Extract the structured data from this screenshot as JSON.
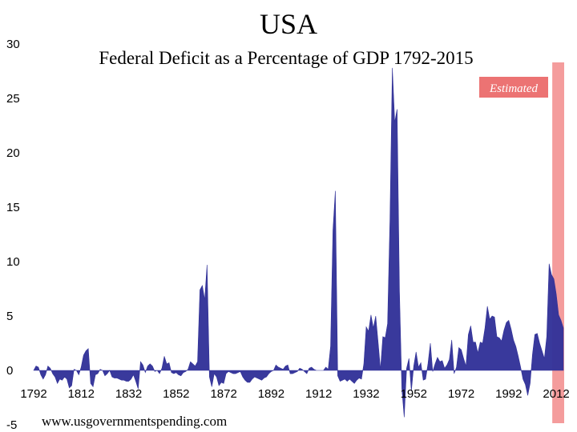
{
  "chart_data": {
    "type": "area",
    "title": "USA",
    "subtitle": "Federal Deficit as a Percentage of GDP 1792-2015",
    "source": "www.usgovernmentspending.com",
    "estimated_label": "Estimated",
    "estimated_range": [
      2011,
      2015
    ],
    "xlim": [
      1792,
      2015
    ],
    "ylim": [
      -5,
      30
    ],
    "yticks": [
      -5,
      0,
      5,
      10,
      15,
      20,
      25,
      30
    ],
    "xticks": [
      1792,
      1812,
      1832,
      1852,
      1872,
      1892,
      1912,
      1932,
      1952,
      1972,
      1992,
      2012
    ],
    "grid": false,
    "colors": {
      "series": "#333399",
      "estimated": "#f28b8b",
      "estimated_label_bg": "#ec7373"
    },
    "series": [
      {
        "points": [
          [
            1792,
            0.0
          ],
          [
            1793,
            0.4
          ],
          [
            1794,
            0.3
          ],
          [
            1795,
            -0.4
          ],
          [
            1796,
            -0.8
          ],
          [
            1797,
            -0.4
          ],
          [
            1798,
            0.4
          ],
          [
            1799,
            0.2
          ],
          [
            1800,
            -0.3
          ],
          [
            1801,
            -0.6
          ],
          [
            1802,
            -1.2
          ],
          [
            1803,
            -0.8
          ],
          [
            1804,
            -0.9
          ],
          [
            1805,
            -0.6
          ],
          [
            1806,
            -0.8
          ],
          [
            1807,
            -1.6
          ],
          [
            1808,
            -1.4
          ],
          [
            1809,
            0.1
          ],
          [
            1810,
            0.0
          ],
          [
            1811,
            -0.4
          ],
          [
            1812,
            0.3
          ],
          [
            1813,
            1.4
          ],
          [
            1814,
            1.8
          ],
          [
            1815,
            2.0
          ],
          [
            1816,
            -1.2
          ],
          [
            1817,
            -1.5
          ],
          [
            1818,
            -0.4
          ],
          [
            1819,
            -0.3
          ],
          [
            1820,
            0.1
          ],
          [
            1821,
            0.0
          ],
          [
            1822,
            -0.5
          ],
          [
            1823,
            -0.3
          ],
          [
            1824,
            0.0
          ],
          [
            1825,
            -0.6
          ],
          [
            1826,
            -0.7
          ],
          [
            1827,
            -0.7
          ],
          [
            1828,
            -0.8
          ],
          [
            1829,
            -0.9
          ],
          [
            1830,
            -0.9
          ],
          [
            1831,
            -1.0
          ],
          [
            1832,
            -1.0
          ],
          [
            1833,
            -0.8
          ],
          [
            1834,
            -0.4
          ],
          [
            1835,
            -1.0
          ],
          [
            1836,
            -1.7
          ],
          [
            1837,
            0.8
          ],
          [
            1838,
            0.5
          ],
          [
            1839,
            -0.2
          ],
          [
            1840,
            0.4
          ],
          [
            1841,
            0.6
          ],
          [
            1842,
            0.4
          ],
          [
            1843,
            -0.1
          ],
          [
            1844,
            0.0
          ],
          [
            1845,
            -0.3
          ],
          [
            1846,
            0.2
          ],
          [
            1847,
            1.3
          ],
          [
            1848,
            0.6
          ],
          [
            1849,
            0.7
          ],
          [
            1850,
            -0.2
          ],
          [
            1851,
            -0.3
          ],
          [
            1852,
            -0.2
          ],
          [
            1853,
            -0.4
          ],
          [
            1854,
            -0.5
          ],
          [
            1855,
            -0.2
          ],
          [
            1856,
            -0.1
          ],
          [
            1857,
            0.1
          ],
          [
            1858,
            0.8
          ],
          [
            1859,
            0.6
          ],
          [
            1860,
            0.4
          ],
          [
            1861,
            0.8
          ],
          [
            1862,
            7.4
          ],
          [
            1863,
            7.8
          ],
          [
            1864,
            6.5
          ],
          [
            1865,
            9.7
          ],
          [
            1866,
            -0.6
          ],
          [
            1867,
            -1.5
          ],
          [
            1868,
            -0.3
          ],
          [
            1869,
            -0.6
          ],
          [
            1870,
            -1.4
          ],
          [
            1871,
            -1.1
          ],
          [
            1872,
            -1.2
          ],
          [
            1873,
            -0.3
          ],
          [
            1874,
            -0.1
          ],
          [
            1875,
            -0.2
          ],
          [
            1876,
            -0.3
          ],
          [
            1877,
            -0.3
          ],
          [
            1878,
            -0.2
          ],
          [
            1879,
            -0.1
          ],
          [
            1880,
            -0.6
          ],
          [
            1881,
            -0.9
          ],
          [
            1882,
            -1.1
          ],
          [
            1883,
            -1.1
          ],
          [
            1884,
            -0.8
          ],
          [
            1885,
            -0.6
          ],
          [
            1886,
            -0.7
          ],
          [
            1887,
            -0.8
          ],
          [
            1888,
            -0.9
          ],
          [
            1889,
            -0.7
          ],
          [
            1890,
            -0.6
          ],
          [
            1891,
            -0.3
          ],
          [
            1892,
            -0.1
          ],
          [
            1893,
            0.0
          ],
          [
            1894,
            0.5
          ],
          [
            1895,
            0.3
          ],
          [
            1896,
            0.2
          ],
          [
            1897,
            0.1
          ],
          [
            1898,
            0.4
          ],
          [
            1899,
            0.5
          ],
          [
            1900,
            -0.3
          ],
          [
            1901,
            -0.3
          ],
          [
            1902,
            -0.2
          ],
          [
            1903,
            -0.1
          ],
          [
            1904,
            0.2
          ],
          [
            1905,
            0.1
          ],
          [
            1906,
            -0.1
          ],
          [
            1907,
            -0.3
          ],
          [
            1908,
            0.2
          ],
          [
            1909,
            0.3
          ],
          [
            1910,
            0.1
          ],
          [
            1911,
            0.0
          ],
          [
            1912,
            0.0
          ],
          [
            1913,
            0.0
          ],
          [
            1914,
            0.0
          ],
          [
            1915,
            0.3
          ],
          [
            1916,
            0.1
          ],
          [
            1917,
            2.2
          ],
          [
            1918,
            12.9
          ],
          [
            1919,
            16.5
          ],
          [
            1920,
            -0.5
          ],
          [
            1921,
            -1.0
          ],
          [
            1922,
            -0.9
          ],
          [
            1923,
            -0.8
          ],
          [
            1924,
            -1.0
          ],
          [
            1925,
            -0.8
          ],
          [
            1926,
            -1.0
          ],
          [
            1927,
            -1.2
          ],
          [
            1928,
            -0.9
          ],
          [
            1929,
            -0.7
          ],
          [
            1930,
            -0.8
          ],
          [
            1931,
            0.6
          ],
          [
            1932,
            4.0
          ],
          [
            1933,
            3.6
          ],
          [
            1934,
            5.1
          ],
          [
            1935,
            3.9
          ],
          [
            1936,
            5.0
          ],
          [
            1937,
            2.6
          ],
          [
            1938,
            0.1
          ],
          [
            1939,
            3.1
          ],
          [
            1940,
            3.0
          ],
          [
            1941,
            4.3
          ],
          [
            1942,
            13.9
          ],
          [
            1943,
            27.8
          ],
          [
            1944,
            22.8
          ],
          [
            1945,
            24.0
          ],
          [
            1946,
            7.2
          ],
          [
            1947,
            -1.7
          ],
          [
            1948,
            -4.3
          ],
          [
            1949,
            0.2
          ],
          [
            1950,
            1.1
          ],
          [
            1951,
            -1.9
          ],
          [
            1952,
            0.4
          ],
          [
            1953,
            1.7
          ],
          [
            1954,
            0.3
          ],
          [
            1955,
            0.7
          ],
          [
            1956,
            -0.9
          ],
          [
            1957,
            -0.8
          ],
          [
            1958,
            0.6
          ],
          [
            1959,
            2.5
          ],
          [
            1960,
            -0.1
          ],
          [
            1961,
            0.6
          ],
          [
            1962,
            1.2
          ],
          [
            1963,
            0.8
          ],
          [
            1964,
            0.9
          ],
          [
            1965,
            0.2
          ],
          [
            1966,
            0.5
          ],
          [
            1967,
            1.0
          ],
          [
            1968,
            2.8
          ],
          [
            1969,
            -0.3
          ],
          [
            1970,
            0.3
          ],
          [
            1971,
            2.1
          ],
          [
            1972,
            1.9
          ],
          [
            1973,
            1.1
          ],
          [
            1974,
            0.4
          ],
          [
            1975,
            3.3
          ],
          [
            1976,
            4.1
          ],
          [
            1977,
            2.6
          ],
          [
            1978,
            2.6
          ],
          [
            1979,
            1.6
          ],
          [
            1980,
            2.6
          ],
          [
            1981,
            2.5
          ],
          [
            1982,
            3.9
          ],
          [
            1983,
            5.9
          ],
          [
            1984,
            4.7
          ],
          [
            1985,
            5.0
          ],
          [
            1986,
            4.9
          ],
          [
            1987,
            3.1
          ],
          [
            1988,
            3.0
          ],
          [
            1989,
            2.7
          ],
          [
            1990,
            3.7
          ],
          [
            1991,
            4.4
          ],
          [
            1992,
            4.6
          ],
          [
            1993,
            3.8
          ],
          [
            1994,
            2.8
          ],
          [
            1995,
            2.2
          ],
          [
            1996,
            1.3
          ],
          [
            1997,
            0.3
          ],
          [
            1998,
            -0.8
          ],
          [
            1999,
            -1.3
          ],
          [
            2000,
            -2.3
          ],
          [
            2001,
            -1.2
          ],
          [
            2002,
            1.5
          ],
          [
            2003,
            3.3
          ],
          [
            2004,
            3.4
          ],
          [
            2005,
            2.5
          ],
          [
            2006,
            1.8
          ],
          [
            2007,
            1.1
          ],
          [
            2008,
            3.1
          ],
          [
            2009,
            9.8
          ],
          [
            2010,
            8.8
          ],
          [
            2011,
            8.4
          ],
          [
            2012,
            7.0
          ],
          [
            2013,
            5.1
          ],
          [
            2014,
            4.6
          ],
          [
            2015,
            3.9
          ]
        ]
      }
    ]
  }
}
